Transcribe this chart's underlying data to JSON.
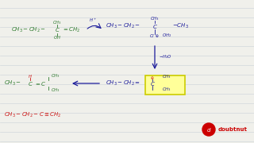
{
  "bg_color": "#f0f0eb",
  "green": "#2d7a2d",
  "blue": "#1a1a9a",
  "red": "#cc1111",
  "yellow_fill": "#ffff99",
  "yellow_edge": "#cccc00",
  "line_color": "#c5cdd5",
  "watermark_color": "#cc0000",
  "fs": 5.0,
  "fs_sm": 3.8
}
